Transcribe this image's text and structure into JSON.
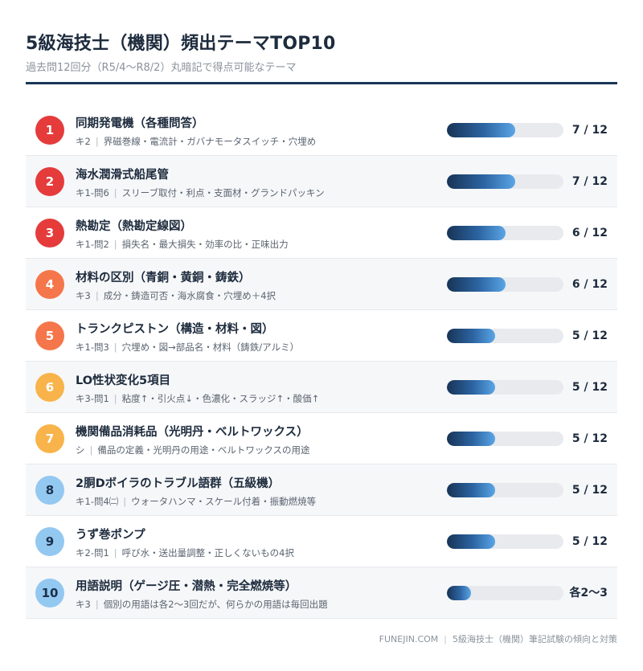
{
  "header": {
    "title": "5級海技士（機関）頻出テーマTOP10",
    "subtitle": "過去問12回分（R5/4〜R8/2）丸暗記で得点可能なテーマ"
  },
  "footer": {
    "site": "FUNEJIN.COM",
    "caption": "5級海技士（機関）筆記試験の傾向と対策"
  },
  "colors": {
    "rank_1_3": "#e53b3b",
    "rank_4_5": "#f5764a",
    "rank_6_7": "#f8b44a",
    "rank_8_10": "#93c8f1",
    "bar_dark": "#173456",
    "bar_light": "#5aa5e6",
    "rule": "#1b3556"
  },
  "chart_data": {
    "type": "bar",
    "orientation": "horizontal",
    "max": 12,
    "items": [
      {
        "rank": "1",
        "title": "同期発電機（各種問答）",
        "tag": "キ2",
        "desc": "界磁巻線・電流計・ガバナモータスイッチ・穴埋め",
        "value": 7,
        "value_label": "7 / 12"
      },
      {
        "rank": "2",
        "title": "海水潤滑式船尾管",
        "tag": "キ1-問6",
        "desc": "スリーブ取付・利点・支面材・グランドパッキン",
        "value": 7,
        "value_label": "7 / 12"
      },
      {
        "rank": "3",
        "title": "熱勘定（熱勘定線図）",
        "tag": "キ1-問2",
        "desc": "損失名・最大損失・効率の比・正味出力",
        "value": 6,
        "value_label": "6 / 12"
      },
      {
        "rank": "4",
        "title": "材料の区別（青銅・黄銅・鋳鉄）",
        "tag": "キ3",
        "desc": "成分・鋳造可否・海水腐食・穴埋め＋4択",
        "value": 6,
        "value_label": "6 / 12"
      },
      {
        "rank": "5",
        "title": "トランクピストン（構造・材料・図）",
        "tag": "キ1-問3",
        "desc": "穴埋め・図→部品名・材料（鋳鉄/アルミ）",
        "value": 5,
        "value_label": "5 / 12"
      },
      {
        "rank": "6",
        "title": "LO性状変化5項目",
        "tag": "キ3-問1",
        "desc": "粘度↑・引火点↓・色濃化・スラッジ↑・酸価↑",
        "value": 5,
        "value_label": "5 / 12"
      },
      {
        "rank": "7",
        "title": "機関備品消耗品（光明丹・ベルトワックス）",
        "tag": "シ",
        "desc": "備品の定義・光明丹の用途・ベルトワックスの用途",
        "value": 5,
        "value_label": "5 / 12"
      },
      {
        "rank": "8",
        "title": "2胴Dボイラのトラブル語群（五級機）",
        "tag": "キ1-問4㈡",
        "desc": "ウォータハンマ・スケール付着・振動燃焼等",
        "value": 5,
        "value_label": "5 / 12"
      },
      {
        "rank": "9",
        "title": "うず巻ポンプ",
        "tag": "キ2-問1",
        "desc": "呼び水・送出量調整・正しくないもの4択",
        "value": 5,
        "value_label": "5 / 12"
      },
      {
        "rank": "10",
        "title": "用語説明（ゲージ圧・潜熱・完全燃焼等）",
        "tag": "キ3",
        "desc": "個別の用語は各2〜3回だが、何らかの用語は毎回出題",
        "value": 2.5,
        "value_label": "各2〜3"
      }
    ]
  }
}
